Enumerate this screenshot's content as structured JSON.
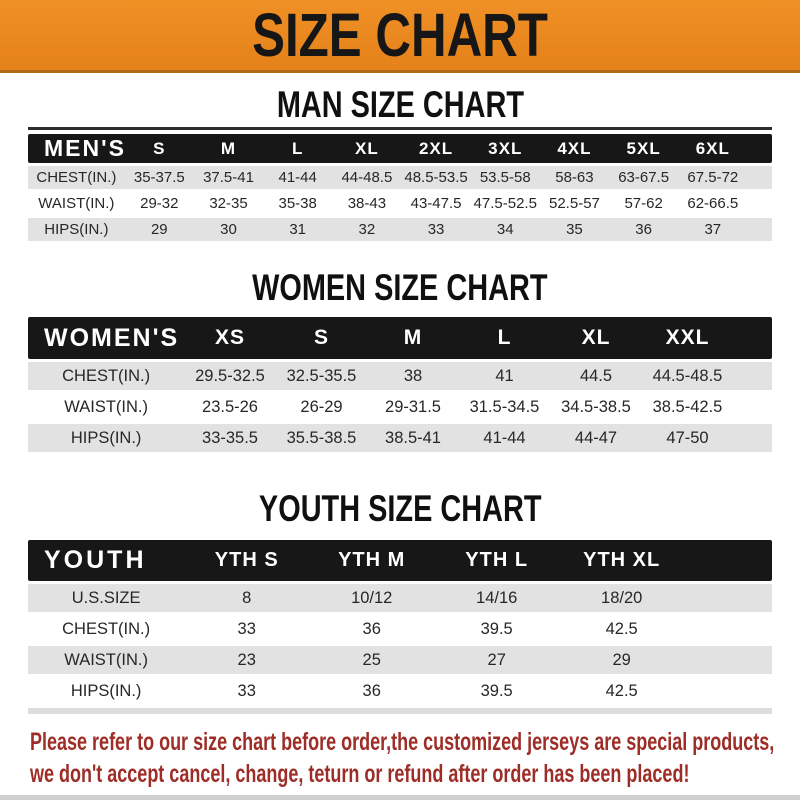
{
  "banner": {
    "title": "SIZE CHART"
  },
  "theme": {
    "banner_bg": "#e8871e",
    "header_bar_bg": "#171717",
    "row_stripe": "#e3e2e2",
    "disclaimer_color": "#9d2d26"
  },
  "sections": [
    {
      "title": "MAN SIZE CHART",
      "header_label": "MEN'S",
      "columns": [
        "S",
        "M",
        "L",
        "XL",
        "2XL",
        "3XL",
        "4XL",
        "5XL",
        "6XL"
      ],
      "rows": [
        {
          "label": "CHEST(IN.)",
          "values": [
            "35-37.5",
            "37.5-41",
            "41-44",
            "44-48.5",
            "48.5-53.5",
            "53.5-58",
            "58-63",
            "63-67.5",
            "67.5-72"
          ]
        },
        {
          "label": "WAIST(IN.)",
          "values": [
            "29-32",
            "32-35",
            "35-38",
            "38-43",
            "43-47.5",
            "47.5-52.5",
            "52.5-57",
            "57-62",
            "62-66.5"
          ]
        },
        {
          "label": "HIPS(IN.)",
          "values": [
            "29",
            "30",
            "31",
            "32",
            "33",
            "34",
            "35",
            "36",
            "37"
          ]
        }
      ]
    },
    {
      "title": "WOMEN SIZE CHART",
      "header_label": "WOMEN'S",
      "columns": [
        "XS",
        "S",
        "M",
        "L",
        "XL",
        "XXL"
      ],
      "rows": [
        {
          "label": "CHEST(IN.)",
          "values": [
            "29.5-32.5",
            "32.5-35.5",
            "38",
            "41",
            "44.5",
            "44.5-48.5"
          ]
        },
        {
          "label": "WAIST(IN.)",
          "values": [
            "23.5-26",
            "26-29",
            "29-31.5",
            "31.5-34.5",
            "34.5-38.5",
            "38.5-42.5"
          ]
        },
        {
          "label": "HIPS(IN.)",
          "values": [
            "33-35.5",
            "35.5-38.5",
            "38.5-41",
            "41-44",
            "44-47",
            "47-50"
          ]
        }
      ]
    },
    {
      "title": "YOUTH SIZE CHART",
      "header_label": "YOUTH",
      "columns": [
        "YTH S",
        "YTH M",
        "YTH L",
        "YTH XL"
      ],
      "rows": [
        {
          "label": "U.S.SIZE",
          "values": [
            "8",
            "10/12",
            "14/16",
            "18/20"
          ]
        },
        {
          "label": "CHEST(IN.)",
          "values": [
            "33",
            "36",
            "39.5",
            "42.5"
          ]
        },
        {
          "label": "WAIST(IN.)",
          "values": [
            "23",
            "25",
            "27",
            "29"
          ]
        },
        {
          "label": "HIPS(IN.)",
          "values": [
            "33",
            "36",
            "39.5",
            "42.5"
          ]
        }
      ]
    }
  ],
  "disclaimer": {
    "lines": [
      "Please refer to our size chart before order,the customized jerseys are special products,",
      "we don't accept cancel, change, teturn or refund after order has been placed!"
    ]
  }
}
